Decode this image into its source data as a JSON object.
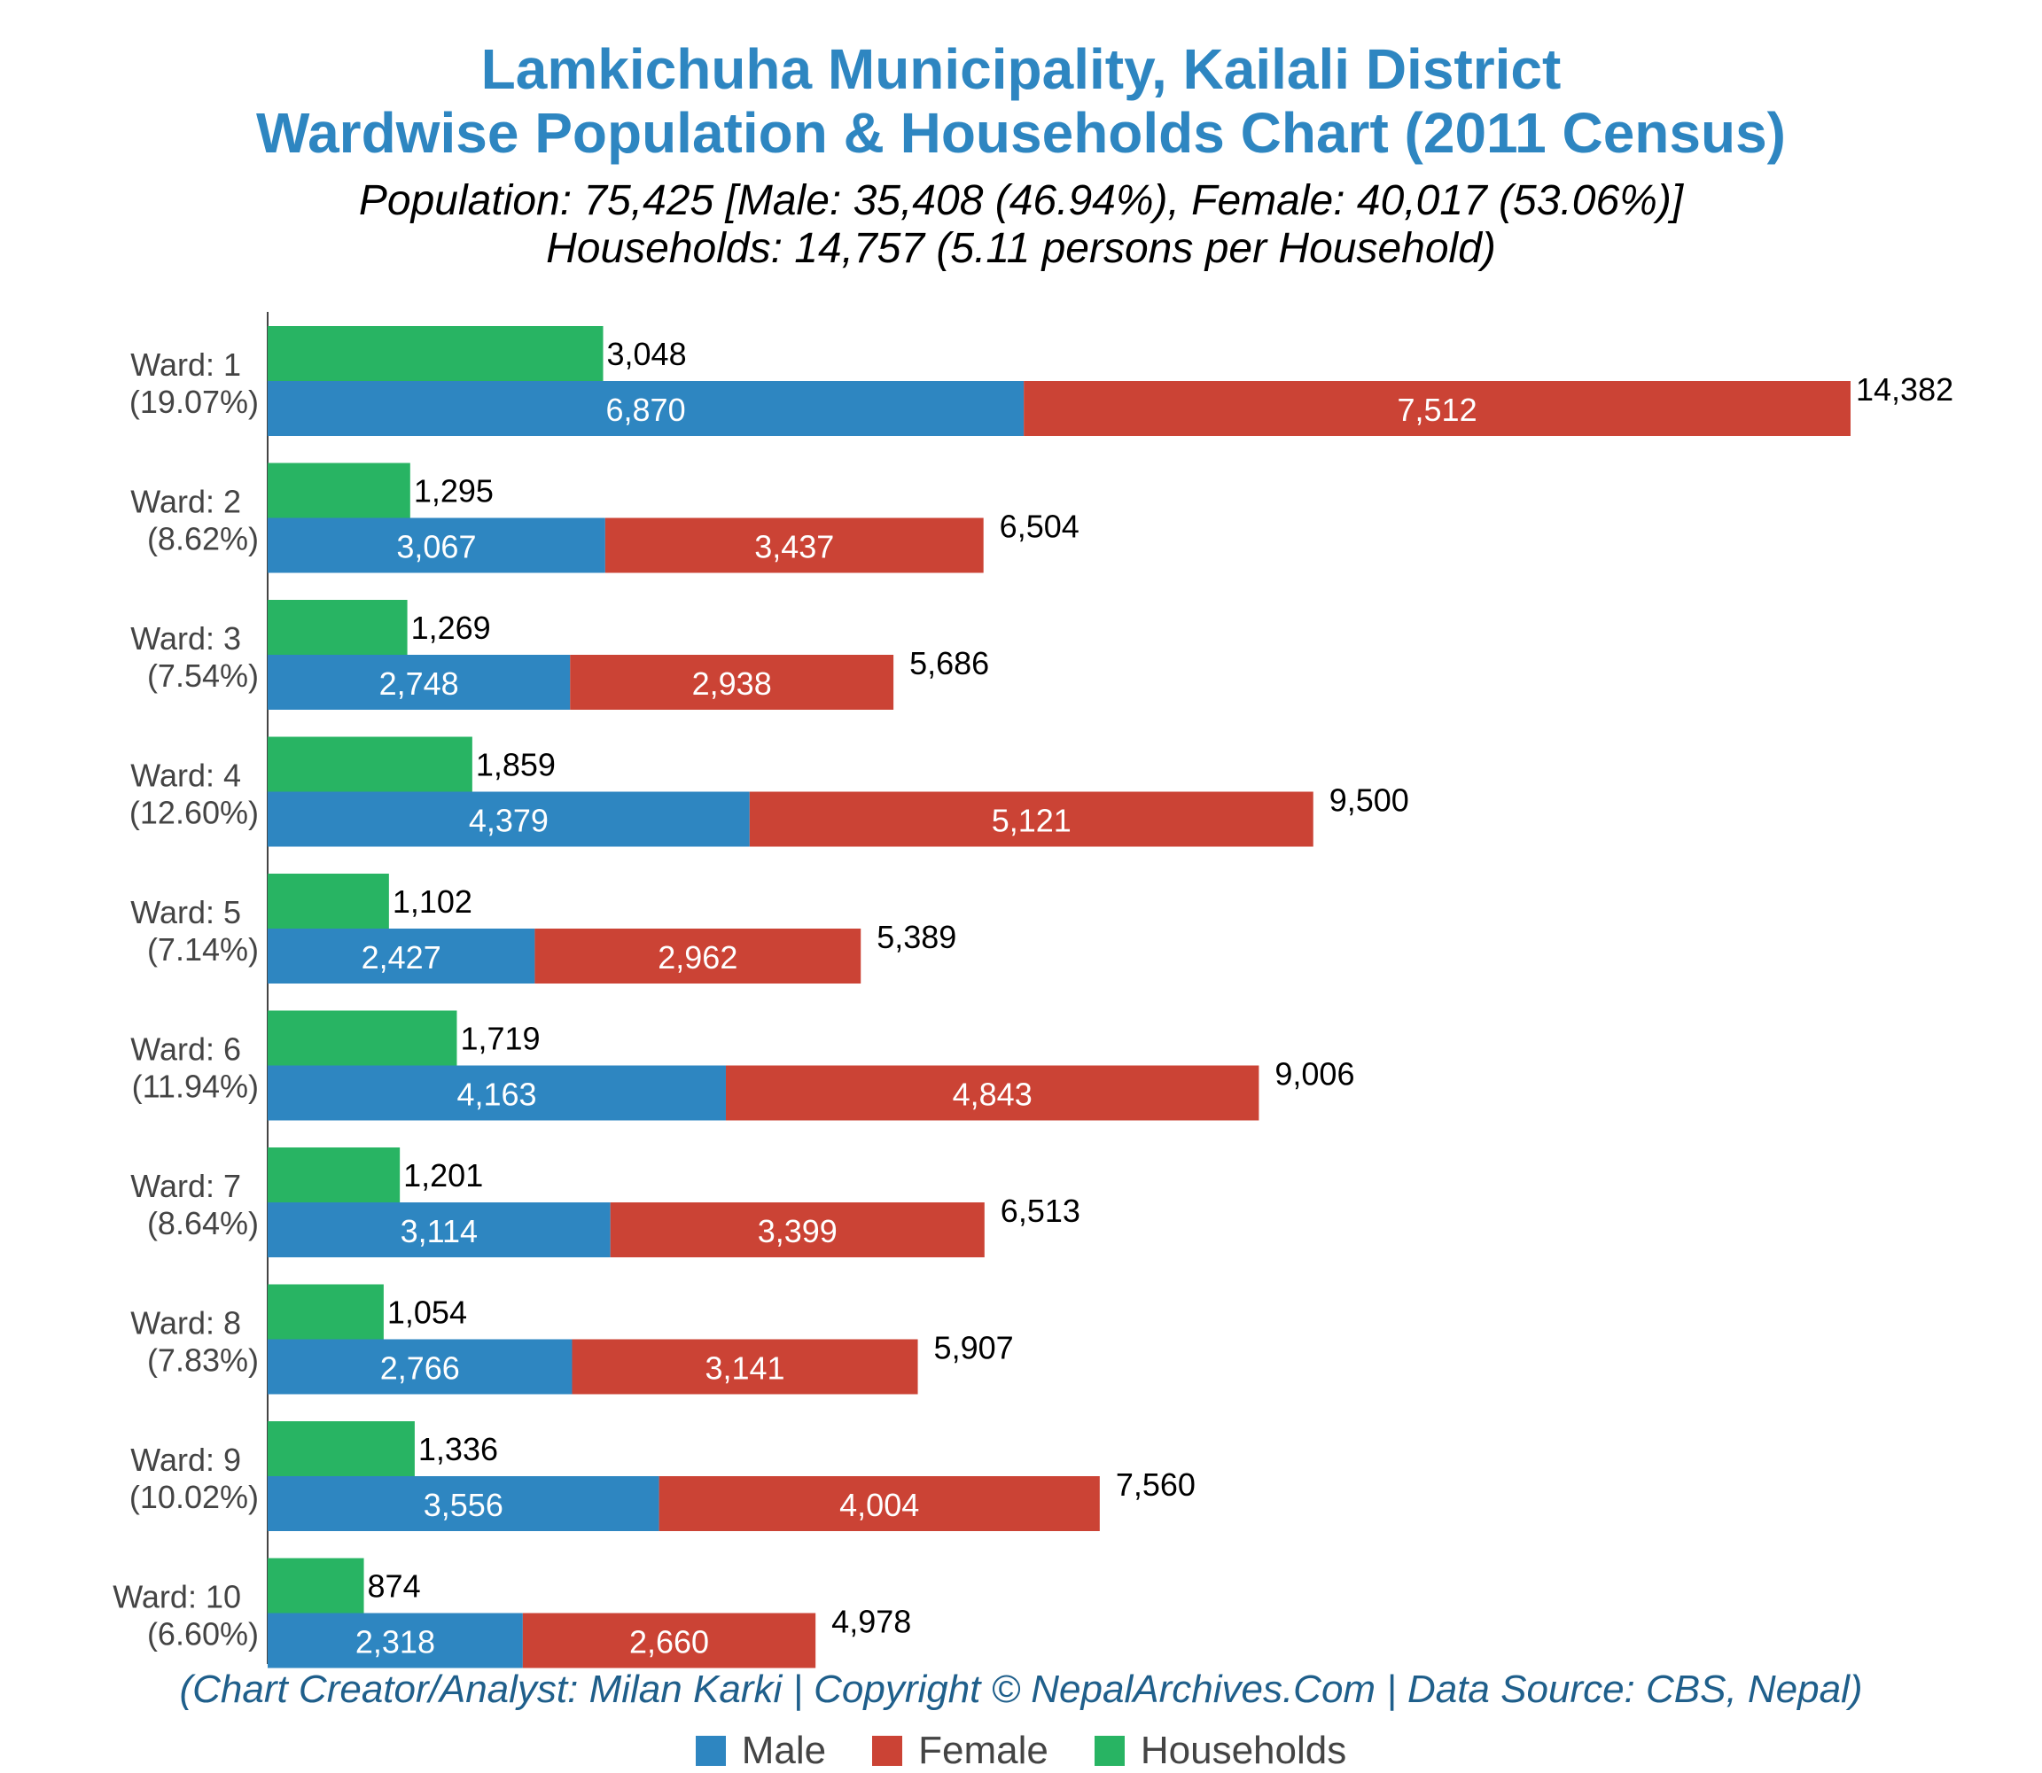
{
  "title_line1": "Lamkichuha Municipality, Kailali District",
  "title_line2": "Wardwise Population & Households Chart (2011 Census)",
  "subtitle_line1": "Population: 75,425 [Male: 35,408 (46.94%), Female: 40,017 (53.06%)]",
  "subtitle_line2": "Households: 14,757 (5.11 persons per Household)",
  "credit": "(Chart Creator/Analyst: Milan Karki | Copyright © NepalArchives.Com | Data Source: CBS, Nepal)",
  "colors": {
    "male": "#2e86c1",
    "female": "#cb4335",
    "households": "#28b463",
    "title": "#2e86c1"
  },
  "chart_data": {
    "type": "bar",
    "orientation": "horizontal",
    "stacked_series": [
      "Male",
      "Female"
    ],
    "categories": [
      "Ward: 1",
      "Ward: 2",
      "Ward: 3",
      "Ward: 4",
      "Ward: 5",
      "Ward: 6",
      "Ward: 7",
      "Ward: 8",
      "Ward: 9",
      "Ward: 10"
    ],
    "category_percents": [
      "(19.07%)",
      "(8.62%)",
      "(7.54%)",
      "(12.60%)",
      "(7.14%)",
      "(11.94%)",
      "(8.64%)",
      "(7.83%)",
      "(10.02%)",
      "(6.60%)"
    ],
    "series": [
      {
        "name": "Male",
        "values": [
          6870,
          3067,
          2748,
          4379,
          2427,
          4163,
          3114,
          2766,
          3556,
          2318
        ]
      },
      {
        "name": "Female",
        "values": [
          7512,
          3437,
          2938,
          5121,
          2962,
          4843,
          3399,
          3141,
          4004,
          2660
        ]
      },
      {
        "name": "Households",
        "values": [
          3048,
          1295,
          1269,
          1859,
          1102,
          1719,
          1201,
          1054,
          1336,
          874
        ]
      }
    ],
    "totals": [
      14382,
      6504,
      5686,
      9500,
      5389,
      9006,
      6513,
      5907,
      7560,
      4978
    ],
    "xlim": [
      0,
      14382
    ],
    "legend": [
      "Male",
      "Female",
      "Households"
    ],
    "legend_position": "bottom",
    "grid": false
  }
}
